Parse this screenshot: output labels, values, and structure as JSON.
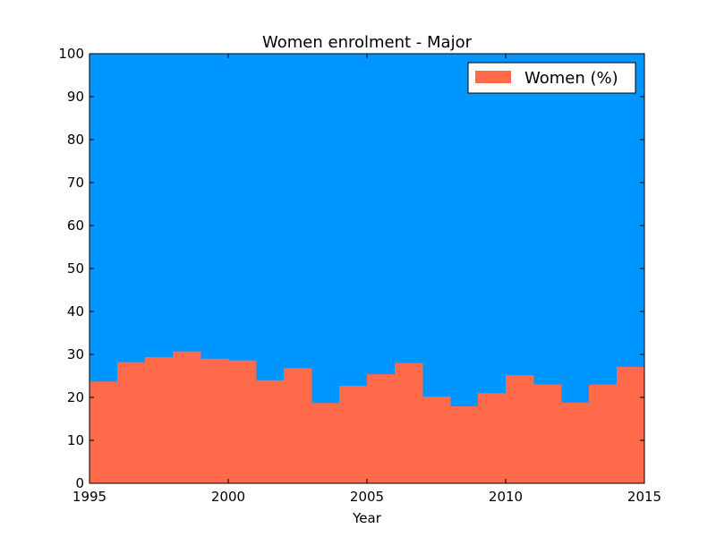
{
  "chart_data": {
    "type": "area",
    "title": "Women enrolment - Major",
    "xlabel": "Year",
    "ylabel": "",
    "xlim": [
      1995,
      2015
    ],
    "ylim": [
      0,
      100
    ],
    "xticks": [
      1995,
      2000,
      2005,
      2010,
      2015
    ],
    "yticks": [
      0,
      10,
      20,
      30,
      40,
      50,
      60,
      70,
      80,
      90,
      100
    ],
    "legend": {
      "position": "upper-right",
      "entries": [
        "Women (%)"
      ]
    },
    "background_color": "#0096ff",
    "series": [
      {
        "name": "Women (%)",
        "color": "#ff6a4a",
        "step": "post",
        "x": [
          1995,
          1996,
          1997,
          1998,
          1999,
          2000,
          2001,
          2002,
          2003,
          2004,
          2005,
          2006,
          2007,
          2008,
          2009,
          2010,
          2011,
          2012,
          2013,
          2014
        ],
        "values": [
          23.7,
          28.2,
          29.4,
          30.7,
          29.0,
          28.6,
          24.0,
          26.8,
          18.7,
          22.7,
          25.4,
          28.0,
          20.2,
          17.9,
          21.0,
          25.2,
          23.0,
          18.8,
          23.0,
          27.1
        ]
      }
    ]
  }
}
